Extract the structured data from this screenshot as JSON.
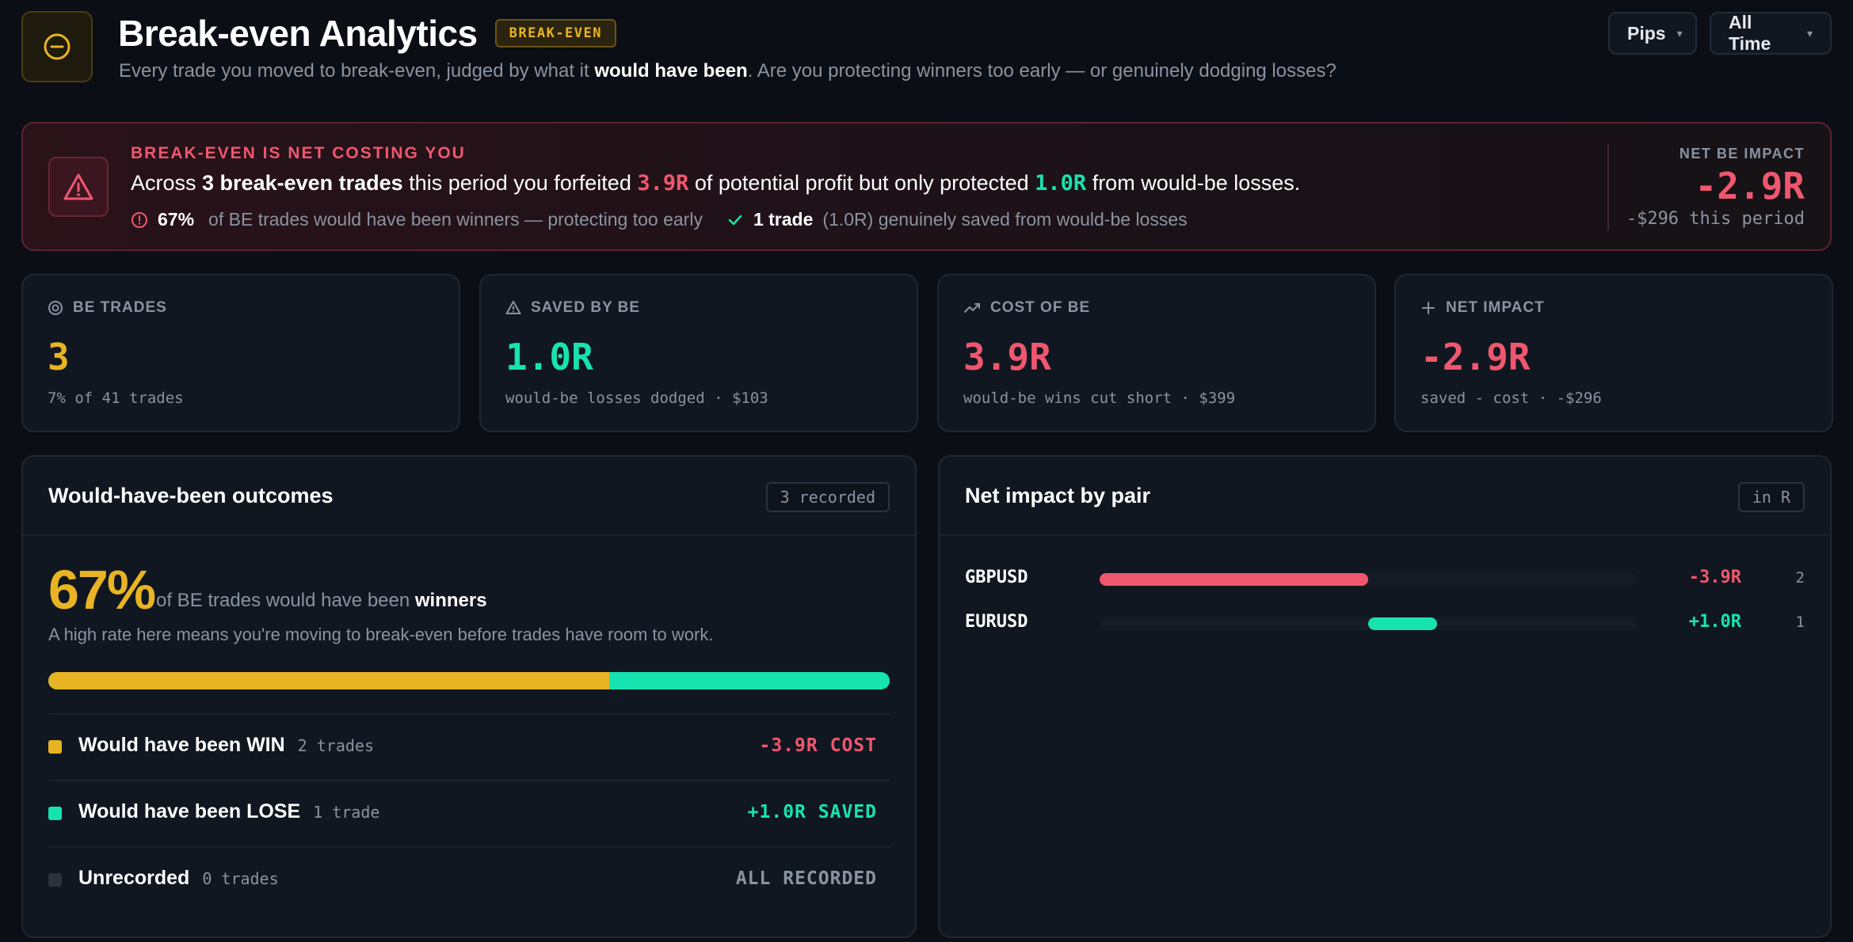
{
  "header": {
    "title": "Break-even Analytics",
    "badge": "BREAK-EVEN",
    "subtitle_pre": "Every trade you moved to break-even, judged by what it ",
    "subtitle_bold": "would have been",
    "subtitle_post": ". Are you protecting winners too early — or genuinely dodging losses?",
    "unit_select": "Pips",
    "range_select": "All Time",
    "logo_icon": "minus-circle-icon"
  },
  "alert": {
    "kicker": "BREAK-EVEN IS NET COSTING YOU",
    "line_1": "Across ",
    "line_bold": "3 break-even trades",
    "line_2": " this period you forfeited ",
    "forfeited": "3.9R",
    "line_3": " of potential profit but only protected ",
    "protected": "1.0R",
    "line_4": " from would-be losses.",
    "pct": "67%",
    "pct_text": "of BE trades would have been winners — protecting too early",
    "saved_count": "1 trade",
    "saved_text": "(1.0R) genuinely saved from would-be losses",
    "net_label": "NET BE IMPACT",
    "net_value": "-2.9R",
    "net_sub": "-$296 this period",
    "icon": "warning-triangle-icon"
  },
  "stats": [
    {
      "label": "BE TRADES",
      "value": "3",
      "note": "7% of 41 trades",
      "icon": "target-icon"
    },
    {
      "label": "SAVED BY BE",
      "value": "1.0R",
      "note": "would-be losses dodged · $103",
      "icon": "warning-icon"
    },
    {
      "label": "COST OF BE",
      "value": "3.9R",
      "note": "would-be wins cut short · $399",
      "icon": "trend-up-icon"
    },
    {
      "label": "NET IMPACT",
      "value": "-2.9R",
      "note": "saved - cost · -$296",
      "icon": "plus-icon"
    }
  ],
  "outcomes": {
    "title": "Would-have-been outcomes",
    "tag": "3 recorded",
    "pct": "67%",
    "pct_text": "of BE trades would have been ",
    "pct_bold": "winners",
    "hint": "A high rate here means you're moving to break-even before trades have room to work.",
    "win_fraction": 0.667,
    "rows": [
      {
        "label": "Would have been WIN",
        "count": "2 trades",
        "value": "-3.9R COST"
      },
      {
        "label": "Would have been LOSE",
        "count": "1 trade",
        "value": "+1.0R SAVED"
      },
      {
        "label": "Unrecorded",
        "count": "0 trades",
        "value": "ALL RECORDED"
      }
    ]
  },
  "pairs": {
    "title": "Net impact by pair",
    "tag": "in R",
    "rows": [
      {
        "pair": "GBPUSD",
        "value": "-3.9R",
        "r": -3.9,
        "count": "2"
      },
      {
        "pair": "EURUSD",
        "value": "+1.0R",
        "r": 1.0,
        "count": "1"
      }
    ],
    "scale_max": 3.9
  },
  "colors": {
    "win": "#e8b423",
    "lose": "#17e3b0",
    "negative": "#f0576f",
    "unrecorded": "#2a323d"
  }
}
